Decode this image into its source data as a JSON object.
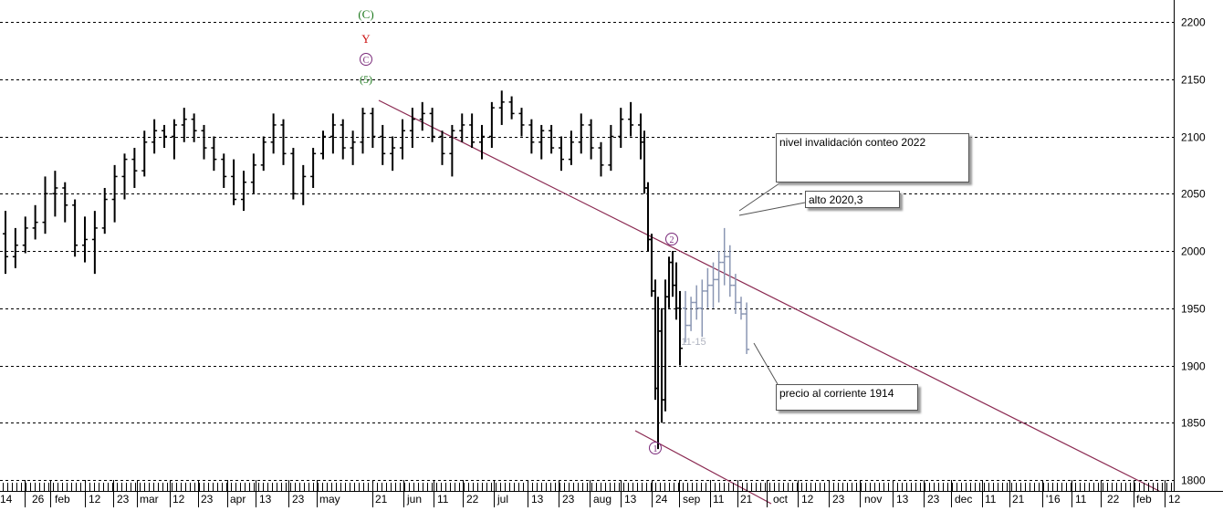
{
  "chart_data": {
    "type": "ohlc",
    "title": "",
    "ylim": [
      1790,
      2230
    ],
    "y_ticks": [
      1800,
      1850,
      1900,
      1950,
      2000,
      2050,
      2100,
      2150,
      2200
    ],
    "grid": "horizontal dashed",
    "x_ticks": [
      "14",
      "26",
      "feb",
      "12",
      "23",
      "mar",
      "12",
      "23",
      "apr",
      "13",
      "23",
      "may",
      "21",
      "jun",
      "11",
      "22",
      "jul",
      "13",
      "23",
      "aug",
      "13",
      "24",
      "sep",
      "11",
      "21",
      "oct",
      "12",
      "23",
      "nov",
      "13",
      "23",
      "dec",
      "11",
      "21",
      "'16",
      "11",
      "22",
      "feb",
      "12"
    ],
    "series": [
      {
        "role": "history",
        "ohlc": [
          [
            2015,
            1980,
            2035,
            1995
          ],
          [
            1995,
            1985,
            2020,
            2005
          ],
          [
            2005,
            1998,
            2030,
            2020
          ],
          [
            2020,
            2010,
            2040,
            2025
          ],
          [
            2025,
            2015,
            2065,
            2050
          ],
          [
            2050,
            2030,
            2070,
            2055
          ],
          [
            2055,
            2025,
            2060,
            2040
          ],
          [
            2040,
            1995,
            2045,
            2005
          ],
          [
            2005,
            1990,
            2030,
            2010
          ],
          [
            2010,
            1980,
            2035,
            2020
          ],
          [
            2020,
            2015,
            2055,
            2045
          ],
          [
            2045,
            2025,
            2075,
            2065
          ],
          [
            2065,
            2045,
            2085,
            2080
          ],
          [
            2080,
            2055,
            2090,
            2070
          ],
          [
            2070,
            2065,
            2105,
            2095
          ],
          [
            2095,
            2085,
            2115,
            2105
          ],
          [
            2105,
            2090,
            2110,
            2100
          ],
          [
            2100,
            2080,
            2115,
            2110
          ],
          [
            2110,
            2095,
            2125,
            2115
          ],
          [
            2115,
            2095,
            2120,
            2105
          ],
          [
            2105,
            2080,
            2110,
            2090
          ],
          [
            2090,
            2070,
            2100,
            2080
          ],
          [
            2080,
            2055,
            2085,
            2065
          ],
          [
            2065,
            2040,
            2080,
            2045
          ],
          [
            2045,
            2035,
            2070,
            2060
          ],
          [
            2060,
            2050,
            2085,
            2075
          ],
          [
            2075,
            2070,
            2100,
            2095
          ],
          [
            2095,
            2085,
            2120,
            2110
          ],
          [
            2110,
            2075,
            2115,
            2085
          ],
          [
            2085,
            2045,
            2090,
            2050
          ],
          [
            2050,
            2040,
            2075,
            2065
          ],
          [
            2065,
            2055,
            2090,
            2085
          ],
          [
            2085,
            2080,
            2105,
            2100
          ],
          [
            2100,
            2085,
            2120,
            2110
          ],
          [
            2110,
            2080,
            2115,
            2090
          ],
          [
            2090,
            2075,
            2105,
            2095
          ],
          [
            2095,
            2085,
            2125,
            2120
          ],
          [
            2120,
            2090,
            2125,
            2100
          ],
          [
            2100,
            2075,
            2110,
            2085
          ],
          [
            2085,
            2070,
            2100,
            2090
          ],
          [
            2090,
            2080,
            2115,
            2105
          ],
          [
            2105,
            2090,
            2125,
            2115
          ],
          [
            2115,
            2105,
            2130,
            2120
          ],
          [
            2120,
            2095,
            2125,
            2100
          ],
          [
            2100,
            2075,
            2105,
            2085
          ],
          [
            2085,
            2065,
            2110,
            2105
          ],
          [
            2105,
            2095,
            2120,
            2110
          ],
          [
            2110,
            2090,
            2120,
            2095
          ],
          [
            2095,
            2080,
            2110,
            2100
          ],
          [
            2100,
            2090,
            2130,
            2125
          ],
          [
            2125,
            2110,
            2140,
            2130
          ],
          [
            2130,
            2115,
            2135,
            2120
          ],
          [
            2120,
            2100,
            2125,
            2110
          ],
          [
            2110,
            2085,
            2115,
            2095
          ],
          [
            2095,
            2080,
            2110,
            2105
          ],
          [
            2105,
            2085,
            2110,
            2090
          ],
          [
            2090,
            2070,
            2100,
            2080
          ],
          [
            2080,
            2075,
            2105,
            2095
          ],
          [
            2095,
            2085,
            2120,
            2110
          ],
          [
            2110,
            2080,
            2115,
            2090
          ],
          [
            2090,
            2065,
            2095,
            2075
          ],
          [
            2075,
            2070,
            2110,
            2100
          ],
          [
            2100,
            2090,
            2125,
            2115
          ],
          [
            2115,
            2100,
            2130,
            2110
          ],
          [
            2110,
            2080,
            2120,
            2095
          ]
        ]
      },
      {
        "role": "projection",
        "ohlc": [
          [
            1950,
            1920,
            1965,
            1935
          ],
          [
            1935,
            1930,
            1960,
            1955
          ],
          [
            1955,
            1940,
            1970,
            1950
          ],
          [
            1950,
            1925,
            1975,
            1965
          ],
          [
            1965,
            1950,
            1985,
            1970
          ],
          [
            1970,
            1950,
            1990,
            1975
          ],
          [
            1975,
            1955,
            2000,
            1990
          ],
          [
            1990,
            1970,
            2020,
            1995
          ],
          [
            1995,
            1960,
            2005,
            1970
          ],
          [
            1970,
            1945,
            1980,
            1955
          ],
          [
            1955,
            1940,
            1960,
            1945
          ],
          [
            1945,
            1910,
            1955,
            1914
          ]
        ]
      }
    ],
    "wave_labels": [
      "(C)",
      "Y",
      "C",
      "(5)",
      "1",
      "2",
      "11-15"
    ],
    "annotations": [
      "nivel invalidación conteo  2022",
      "alto 2020,3",
      "precio   al corriente 1914"
    ]
  },
  "notes": {
    "invalidation": "nivel invalidación conteo  2022",
    "high": "alto 2020,3",
    "price": "precio   al corriente 1914"
  },
  "colors": {
    "bars": "#000000",
    "projection_bars": "#8a96b3",
    "channel": "#8b2a52",
    "label_green": "#1f7a1f",
    "label_red": "#cc1111",
    "label_purple": "#7a2a7a",
    "grid": "#000000"
  }
}
